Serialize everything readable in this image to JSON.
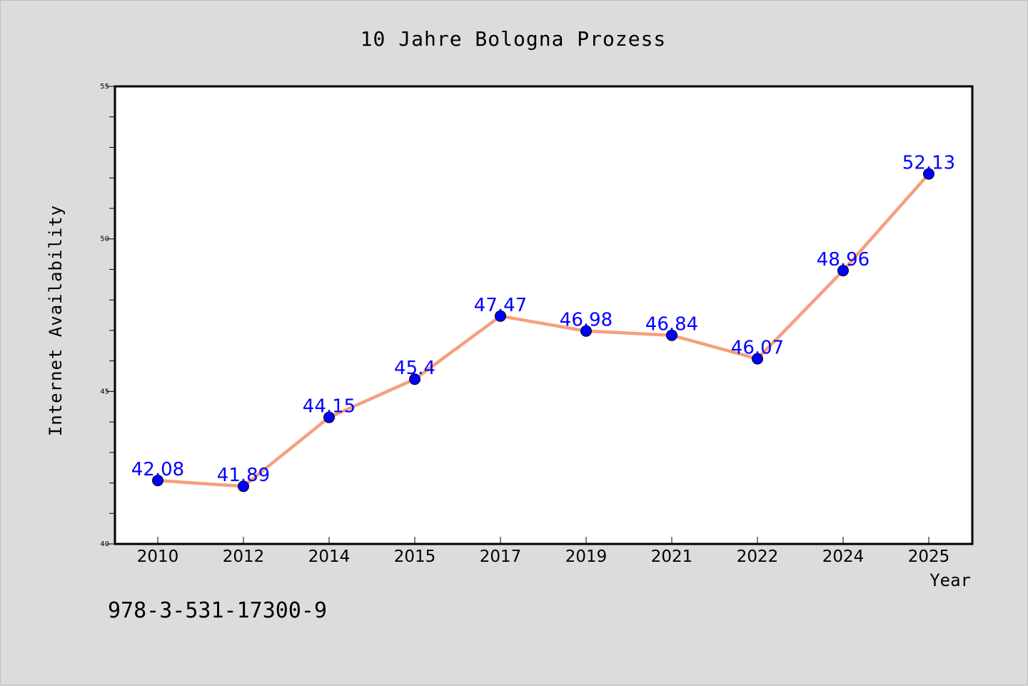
{
  "chart_data": {
    "type": "line",
    "title": "10 Jahre Bologna Prozess",
    "xlabel": "Year",
    "ylabel": "Internet Availability",
    "categories": [
      "2010",
      "2012",
      "2014",
      "2015",
      "2017",
      "2019",
      "2021",
      "2022",
      "2024",
      "2025"
    ],
    "values": [
      42.08,
      41.89,
      44.15,
      45.4,
      47.47,
      46.98,
      46.84,
      46.07,
      48.96,
      52.13
    ],
    "data_labels": [
      "42.08",
      "41.89",
      "44.15",
      "45.4",
      "47.47",
      "46.98",
      "46.84",
      "46.07",
      "48.96",
      "52.13"
    ],
    "ylim": [
      40,
      55
    ],
    "yticks": [
      40,
      45,
      50,
      55
    ],
    "grid": false,
    "line_color": "#f4a07e",
    "marker_color": "#0000ff",
    "label_color": "#0000ff",
    "plot_background": "#ffffff",
    "figure_background": "#dcdcdc"
  },
  "annotation": {
    "isbn": "978-3-531-17300-9"
  }
}
